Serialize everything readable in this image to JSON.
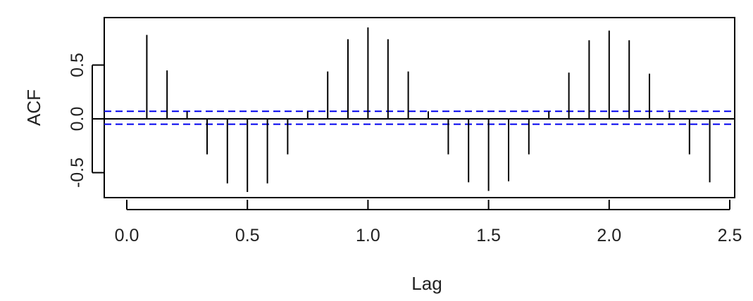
{
  "chart_data": {
    "type": "bar",
    "subtype": "acf-stem",
    "xlabel": "Lag",
    "ylabel": "ACF",
    "xlim": [
      0.0,
      2.5
    ],
    "ylim": [
      -0.7,
      0.85
    ],
    "xticks": [
      {
        "value": 0.0,
        "label": "0.0"
      },
      {
        "value": 0.5,
        "label": "0.5"
      },
      {
        "value": 1.0,
        "label": "1.0"
      },
      {
        "value": 1.5,
        "label": "1.5"
      },
      {
        "value": 2.0,
        "label": "2.0"
      },
      {
        "value": 2.5,
        "label": "2.5"
      }
    ],
    "yticks": [
      {
        "value": -0.5,
        "label": "-0.5"
      },
      {
        "value": 0.0,
        "label": "0.0"
      },
      {
        "value": 0.5,
        "label": "0.5"
      }
    ],
    "grid": false,
    "zero_line": true,
    "confidence_bounds": [
      0.07,
      -0.05
    ],
    "bound_color": "#0000ee",
    "stem_color": "#000000",
    "x": [
      0.083,
      0.167,
      0.25,
      0.333,
      0.417,
      0.5,
      0.583,
      0.667,
      0.75,
      0.833,
      0.917,
      1.0,
      1.083,
      1.167,
      1.25,
      1.333,
      1.417,
      1.5,
      1.583,
      1.667,
      1.75,
      1.833,
      1.917,
      2.0,
      2.083,
      2.167,
      2.25,
      2.333,
      2.417
    ],
    "values": [
      0.78,
      0.45,
      0.07,
      -0.33,
      -0.6,
      -0.68,
      -0.6,
      -0.33,
      0.07,
      0.44,
      0.74,
      0.85,
      0.74,
      0.44,
      0.07,
      -0.33,
      -0.59,
      -0.67,
      -0.58,
      -0.33,
      0.07,
      0.43,
      0.73,
      0.82,
      0.73,
      0.42,
      0.06,
      -0.33,
      -0.59
    ]
  }
}
